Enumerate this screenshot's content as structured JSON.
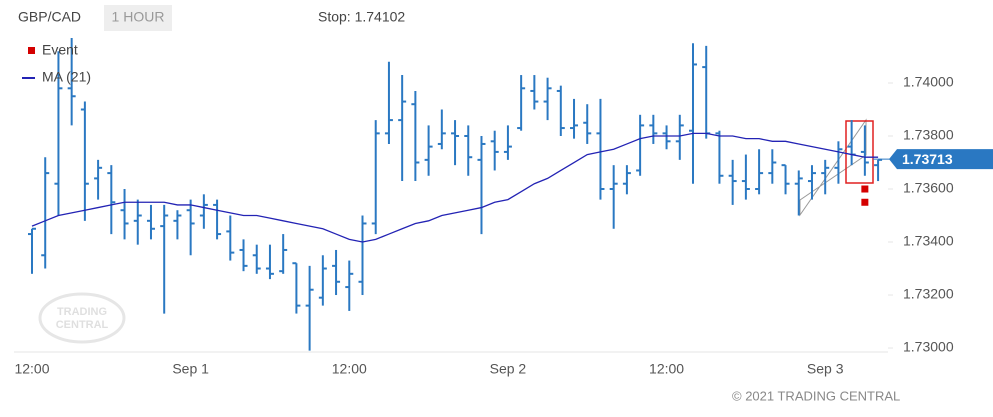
{
  "chart_data": {
    "type": "ohlc",
    "symbol": "GBP/CAD",
    "timeframe": "1 HOUR",
    "stop": "Stop: 1.74102",
    "watermark": [
      "TRADING",
      "CENTRAL"
    ],
    "copyright": "© 2021 TRADING CENTRAL",
    "last_price": 1.73713,
    "categories": [
      "12:00",
      null,
      null,
      null,
      null,
      null,
      null,
      null,
      null,
      null,
      null,
      null,
      "Sep 1",
      null,
      null,
      null,
      null,
      null,
      null,
      null,
      null,
      null,
      null,
      null,
      "12:00",
      null,
      null,
      null,
      null,
      null,
      null,
      null,
      null,
      null,
      null,
      null,
      "Sep 2",
      null,
      null,
      null,
      null,
      null,
      null,
      null,
      null,
      null,
      null,
      null,
      "12:00",
      null,
      null,
      null,
      null,
      null,
      null,
      null,
      null,
      null,
      null,
      null,
      "Sep 3",
      null,
      null,
      null,
      null
    ],
    "ohlc": {
      "color": "#2a78c2",
      "open": [
        1.7343,
        1.7335,
        1.7362,
        1.7398,
        1.739,
        1.7364,
        1.7366,
        1.7352,
        1.7348,
        1.7348,
        1.7346,
        1.7348,
        1.7352,
        1.735,
        1.7354,
        1.7344,
        1.7337,
        1.7335,
        1.733,
        1.7329,
        1.7332,
        1.7316,
        1.7319,
        1.7331,
        1.7323,
        1.7325,
        1.7347,
        1.7381,
        1.7386,
        1.7392,
        1.7371,
        1.7377,
        1.7381,
        1.738,
        1.7371,
        1.7378,
        1.7374,
        1.7383,
        1.7397,
        1.7393,
        1.7397,
        1.7383,
        1.7385,
        1.7381,
        1.736,
        1.7362,
        1.7367,
        1.7384,
        1.7381,
        1.7378,
        1.7382,
        1.7406,
        1.7381,
        1.7365,
        1.7363,
        1.736,
        1.7366,
        1.7369,
        1.7362,
        1.7363,
        1.7366,
        1.7368,
        1.7376,
        1.7374,
        1.7369
      ],
      "high": [
        1.7345,
        1.7372,
        1.7412,
        1.7417,
        1.7393,
        1.7371,
        1.7369,
        1.736,
        1.7356,
        1.7354,
        1.7354,
        1.7352,
        1.7356,
        1.7358,
        1.7356,
        1.735,
        1.7341,
        1.7339,
        1.7339,
        1.7343,
        1.7332,
        1.7331,
        1.7335,
        1.7337,
        1.7333,
        1.735,
        1.7386,
        1.7408,
        1.7403,
        1.7397,
        1.7384,
        1.739,
        1.7386,
        1.7384,
        1.738,
        1.7382,
        1.7384,
        1.7403,
        1.7403,
        1.7402,
        1.7399,
        1.7394,
        1.7392,
        1.7394,
        1.7369,
        1.7369,
        1.7388,
        1.7388,
        1.7384,
        1.7388,
        1.7415,
        1.7414,
        1.7382,
        1.7371,
        1.7373,
        1.7375,
        1.7375,
        1.7369,
        1.7367,
        1.7369,
        1.7371,
        1.7378,
        1.7386,
        1.7384,
        1.7371
      ],
      "low": [
        1.7328,
        1.733,
        1.735,
        1.7384,
        1.7348,
        1.7356,
        1.7343,
        1.7341,
        1.7339,
        1.7341,
        1.7313,
        1.7341,
        1.7335,
        1.7345,
        1.7341,
        1.7333,
        1.7329,
        1.7328,
        1.7326,
        1.7328,
        1.7313,
        1.7299,
        1.7316,
        1.732,
        1.7314,
        1.732,
        1.7343,
        1.7377,
        1.7363,
        1.7363,
        1.7365,
        1.7375,
        1.7369,
        1.7365,
        1.7343,
        1.7367,
        1.7371,
        1.7382,
        1.739,
        1.7386,
        1.738,
        1.7379,
        1.7377,
        1.7356,
        1.7345,
        1.7358,
        1.7365,
        1.7377,
        1.7375,
        1.7371,
        1.7362,
        1.7379,
        1.7362,
        1.7354,
        1.7356,
        1.7358,
        1.7362,
        1.7358,
        1.735,
        1.7356,
        1.7358,
        1.7362,
        1.7369,
        1.7365,
        1.7363
      ],
      "close": [
        1.7345,
        1.7366,
        1.7398,
        1.7395,
        1.7362,
        1.7368,
        1.7355,
        1.7347,
        1.735,
        1.7345,
        1.735,
        1.735,
        1.7347,
        1.7354,
        1.7343,
        1.7336,
        1.7331,
        1.733,
        1.7328,
        1.7337,
        1.7316,
        1.7322,
        1.733,
        1.7325,
        1.7328,
        1.7347,
        1.7381,
        1.7386,
        1.7393,
        1.737,
        1.7376,
        1.7381,
        1.738,
        1.7372,
        1.7377,
        1.7374,
        1.7376,
        1.7398,
        1.7393,
        1.7398,
        1.7383,
        1.7384,
        1.7381,
        1.736,
        1.7362,
        1.7366,
        1.7384,
        1.7381,
        1.7378,
        1.7384,
        1.7407,
        1.7381,
        1.7365,
        1.7363,
        1.736,
        1.7366,
        1.737,
        1.7362,
        1.7364,
        1.7366,
        1.7368,
        1.7375,
        1.7373,
        1.737,
        1.7371
      ]
    },
    "series": [
      {
        "name": "Event",
        "color": "#d40000",
        "values": [
          null,
          null,
          null,
          null,
          null,
          null,
          null,
          null,
          null,
          null,
          null,
          null,
          null,
          null,
          null,
          null,
          null,
          null,
          null,
          null,
          null,
          null,
          null,
          null,
          null,
          null,
          null,
          null,
          null,
          null,
          null,
          null,
          null,
          null,
          null,
          null,
          null,
          null,
          null,
          null,
          null,
          null,
          null,
          null,
          null,
          null,
          null,
          null,
          null,
          null,
          null,
          null,
          null,
          null,
          null,
          null,
          null,
          null,
          null,
          null,
          null,
          null,
          null,
          [
            1.736,
            1.7355
          ],
          null
        ]
      },
      {
        "name": "MA (21)",
        "color": "#2323b4",
        "values": [
          1.7346,
          1.7348,
          1.735,
          1.7351,
          1.7352,
          1.7353,
          1.7354,
          1.7355,
          1.7355,
          1.7355,
          1.7355,
          1.7354,
          1.7354,
          1.7353,
          1.7352,
          1.7351,
          1.735,
          1.735,
          1.7349,
          1.7348,
          1.7347,
          1.7346,
          1.7345,
          1.7343,
          1.7341,
          1.734,
          1.7341,
          1.7343,
          1.7345,
          1.7347,
          1.7348,
          1.735,
          1.7351,
          1.7352,
          1.7353,
          1.7355,
          1.7356,
          1.7359,
          1.7362,
          1.7364,
          1.7367,
          1.737,
          1.7373,
          1.7374,
          1.7375,
          1.7377,
          1.7379,
          1.738,
          1.738,
          1.738,
          1.7381,
          1.7381,
          1.738,
          1.738,
          1.7379,
          1.7379,
          1.7378,
          1.7378,
          1.7377,
          1.7376,
          1.7375,
          1.7374,
          1.7373,
          1.7372,
          1.7372
        ]
      }
    ],
    "ylim": [
      1.72985,
      1.742
    ],
    "yticks": [
      {
        "value": 1.73,
        "label": "1.73000"
      },
      {
        "value": 1.732,
        "label": "1.73200"
      },
      {
        "value": 1.734,
        "label": "1.73400"
      },
      {
        "value": 1.736,
        "label": "1.73600"
      },
      {
        "value": 1.738,
        "label": "1.73800"
      },
      {
        "value": 1.74,
        "label": "1.74000"
      }
    ],
    "grid": false,
    "legend": "top-left"
  }
}
